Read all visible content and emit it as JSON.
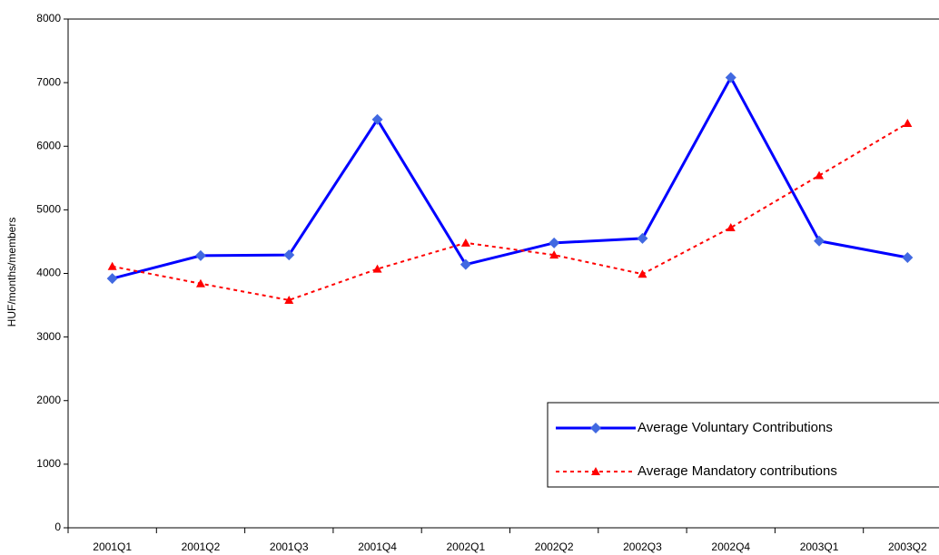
{
  "chart_data": {
    "type": "line",
    "y_label": "HUF/months/members",
    "categories": [
      "2001Q1",
      "2001Q2",
      "2001Q3",
      "2001Q4",
      "2002Q1",
      "2002Q2",
      "2002Q3",
      "2002Q4",
      "2003Q1",
      "2003Q2"
    ],
    "series": [
      {
        "name": "Average Voluntary Contributions",
        "color": "#0000ff",
        "marker": "diamond",
        "marker_color": "#4169e1",
        "values": [
          3920,
          4280,
          4290,
          6420,
          4140,
          4480,
          4550,
          7080,
          4510,
          4250
        ]
      },
      {
        "name": "Average Mandatory contributions",
        "color": "#ff0000",
        "marker": "triangle",
        "marker_color": "#ff0000",
        "values": [
          4110,
          3840,
          3580,
          4070,
          4480,
          4290,
          3990,
          4720,
          5540,
          6360
        ]
      }
    ],
    "ylim": [
      0,
      8000
    ],
    "yticks": [
      0,
      1000,
      2000,
      3000,
      4000,
      5000,
      6000,
      7000,
      8000
    ]
  }
}
